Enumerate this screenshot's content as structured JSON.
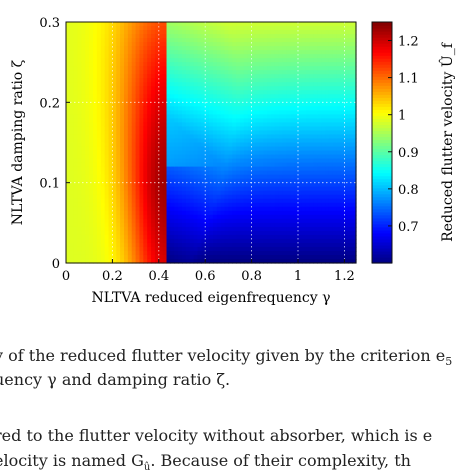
{
  "chart_data": {
    "type": "heatmap",
    "xlabel": "NLTVA reduced eigenfrequency γ",
    "ylabel": "NLTVA damping ratio ζ",
    "xlim": [
      0,
      1.25
    ],
    "ylim": [
      0,
      0.3
    ],
    "x_ticks": [
      "0",
      "0.2",
      "0.4",
      "0.6",
      "0.8",
      "1",
      "1.2"
    ],
    "y_ticks": [
      "0",
      "0.1",
      "0.2",
      "0.3"
    ],
    "grid": "dotted, white",
    "colorbar": {
      "label": "Reduced flutter velocity Û_f",
      "range": [
        0.6,
        1.25
      ],
      "ticks": [
        "0.7",
        "0.8",
        "0.9",
        "1",
        "1.1",
        "1.2"
      ],
      "colormap": "jet"
    },
    "field_summary": {
      "description_points": [
        {
          "x": 0.42,
          "y": 0.1,
          "value": 1.25
        },
        {
          "x": 0.0,
          "y": 0.15,
          "value": 1.0
        },
        {
          "x": 1.25,
          "y": 0.3,
          "value": 0.93
        },
        {
          "x": 1.25,
          "y": 0.0,
          "value": 0.6
        },
        {
          "x": 0.45,
          "y": 0.0,
          "value": 0.62
        },
        {
          "x": 0.8,
          "y": 0.1,
          "value": 0.78
        }
      ]
    }
  },
  "caption": {
    "line1": "y of the reduced flutter velocity given by the criterion e",
    "line1_sub": "5",
    "line2": "uency γ and damping ratio ζ.",
    "line3": "red to the flutter velocity without absorber, which is e",
    "line4": "elocity is named G",
    "line4_sub": "û",
    "line4_rest": ". Because of their complexity, th"
  }
}
